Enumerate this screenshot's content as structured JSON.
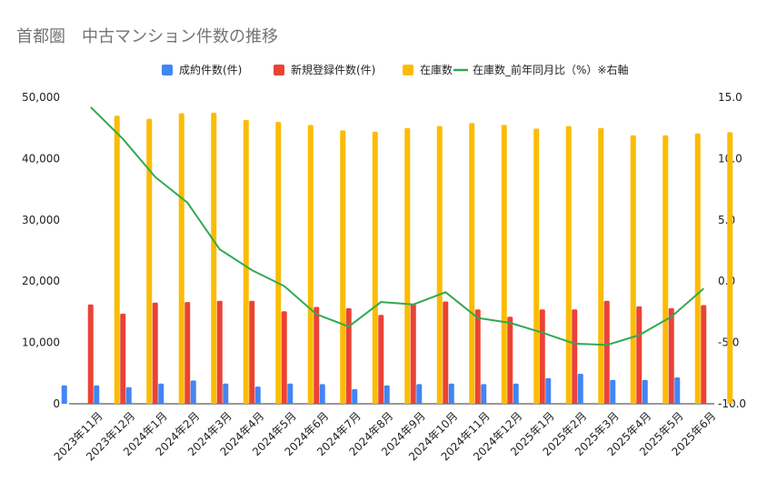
{
  "chart_data": {
    "type": "bar",
    "title": "首都圏　中古マンション件数の推移",
    "categories": [
      "2023年11月",
      "2023年12月",
      "2024年1月",
      "2024年2月",
      "2024年3月",
      "2024年4月",
      "2024年5月",
      "2024年6月",
      "2024年7月",
      "2024年8月",
      "2024年9月",
      "2024年10月",
      "2024年11月",
      "2024年12月",
      "2025年1月",
      "2025年2月",
      "2025年3月",
      "2025年4月",
      "2025年5月",
      "2025年6月"
    ],
    "series": [
      {
        "name": "成約件数(件)",
        "type": "bar",
        "axis": "left",
        "color": "#4285f4",
        "values": [
          3000,
          3000,
          2700,
          3300,
          3800,
          3300,
          2800,
          3300,
          3200,
          2400,
          3000,
          3200,
          3300,
          3200,
          3300,
          4200,
          4900,
          3900,
          3900,
          4300
        ]
      },
      {
        "name": "新規登録件数(件)",
        "type": "bar",
        "axis": "left",
        "color": "#ea4335",
        "values": [
          16200,
          14700,
          16500,
          16600,
          16800,
          16800,
          15100,
          15800,
          15600,
          14500,
          16300,
          16700,
          15400,
          14200,
          15400,
          15400,
          16800,
          15900,
          15600,
          16100
        ]
      },
      {
        "name": "在庫数",
        "type": "bar",
        "axis": "left",
        "color": "#fbbc04",
        "values": [
          47000,
          46500,
          47400,
          47500,
          46300,
          46000,
          45500,
          44600,
          44400,
          45000,
          45300,
          45800,
          45500,
          44900,
          45300,
          45000,
          43800,
          43800,
          44100,
          44300
        ]
      },
      {
        "name": "在庫数_前年同月比（%）※右軸",
        "type": "line",
        "axis": "right",
        "color": "#34a853",
        "values": [
          14.2,
          11.6,
          8.5,
          6.4,
          2.6,
          0.9,
          -0.4,
          -2.7,
          -3.7,
          -1.7,
          -1.9,
          -0.9,
          -3.0,
          -3.4,
          -4.2,
          -5.1,
          -5.2,
          -4.4,
          -2.9,
          -0.6
        ]
      }
    ],
    "y_left": {
      "min": 0,
      "max": 50000,
      "ticks": [
        "0",
        "10,000",
        "20,000",
        "30,000",
        "40,000",
        "50,000"
      ]
    },
    "y_right": {
      "min": -10,
      "max": 15,
      "ticks": [
        "-10.0",
        "-5.0",
        "0.0",
        "5.0",
        "10.0",
        "15.0"
      ]
    },
    "grid": false,
    "legend_position": "top"
  }
}
